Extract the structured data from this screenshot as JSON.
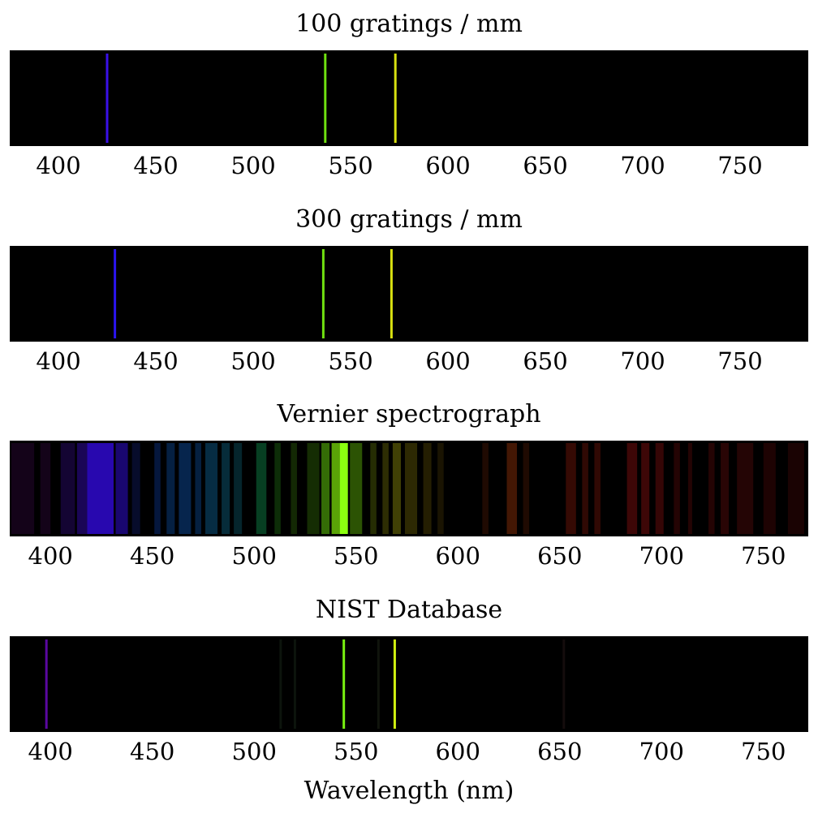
{
  "chart_data": [
    {
      "type": "spectrum",
      "title": "100 gratings / mm",
      "xlim": [
        375,
        785
      ],
      "xticks": [
        400,
        450,
        500,
        550,
        600,
        650,
        700,
        750
      ],
      "lines": [
        {
          "wavelength": 425,
          "color": "#3a10e8",
          "intensity": 1.0
        },
        {
          "wavelength": 537,
          "color": "#6fe010",
          "intensity": 1.0
        },
        {
          "wavelength": 573,
          "color": "#d8e010",
          "intensity": 1.0
        }
      ]
    },
    {
      "type": "spectrum",
      "title": "300 gratings / mm",
      "xlim": [
        375,
        785
      ],
      "xticks": [
        400,
        450,
        500,
        550,
        600,
        650,
        700,
        750
      ],
      "lines": [
        {
          "wavelength": 429,
          "color": "#2a14f0",
          "intensity": 1.0
        },
        {
          "wavelength": 536,
          "color": "#6fe010",
          "intensity": 1.0
        },
        {
          "wavelength": 571,
          "color": "#d8e010",
          "intensity": 1.0
        }
      ]
    },
    {
      "type": "spectrum",
      "title": "Vernier spectrograph",
      "xlim": [
        380,
        772
      ],
      "xticks": [
        400,
        450,
        500,
        550,
        600,
        650,
        700,
        750
      ],
      "bands": [
        {
          "from": 380,
          "to": 392,
          "color": "#3a0a48",
          "intensity": 0.35
        },
        {
          "from": 395,
          "to": 400,
          "color": "#3a0a48",
          "intensity": 0.35
        },
        {
          "from": 405,
          "to": 412,
          "color": "#2c0a70",
          "intensity": 0.45
        },
        {
          "from": 413,
          "to": 418,
          "color": "#2c0a90",
          "intensity": 0.6
        },
        {
          "from": 418,
          "to": 431,
          "color": "#2a08b8",
          "intensity": 0.95
        },
        {
          "from": 432,
          "to": 438,
          "color": "#240aa0",
          "intensity": 0.7
        },
        {
          "from": 440,
          "to": 444,
          "color": "#101a60",
          "intensity": 0.45
        },
        {
          "from": 451,
          "to": 454,
          "color": "#0a2a70",
          "intensity": 0.55
        },
        {
          "from": 457,
          "to": 461,
          "color": "#0a3a78",
          "intensity": 0.55
        },
        {
          "from": 463,
          "to": 469,
          "color": "#0a3e80",
          "intensity": 0.6
        },
        {
          "from": 471,
          "to": 474,
          "color": "#0a4080",
          "intensity": 0.5
        },
        {
          "from": 476,
          "to": 482,
          "color": "#0a4a70",
          "intensity": 0.6
        },
        {
          "from": 484,
          "to": 488,
          "color": "#0a4a60",
          "intensity": 0.6
        },
        {
          "from": 490,
          "to": 494,
          "color": "#0a4a58",
          "intensity": 0.5
        },
        {
          "from": 501,
          "to": 506,
          "color": "#0a5a30",
          "intensity": 0.7
        },
        {
          "from": 510,
          "to": 513,
          "color": "#1a5a10",
          "intensity": 0.5
        },
        {
          "from": 518,
          "to": 521,
          "color": "#2a5a08",
          "intensity": 0.45
        },
        {
          "from": 526,
          "to": 532,
          "color": "#2a5a06",
          "intensity": 0.5
        },
        {
          "from": 533,
          "to": 537,
          "color": "#4a9a08",
          "intensity": 0.7
        },
        {
          "from": 538,
          "to": 542,
          "color": "#6ac008",
          "intensity": 0.85
        },
        {
          "from": 542,
          "to": 546,
          "color": "#8cff10",
          "intensity": 1.0
        },
        {
          "from": 547,
          "to": 553,
          "color": "#4a8a06",
          "intensity": 0.6
        },
        {
          "from": 557,
          "to": 560,
          "color": "#4a5a06",
          "intensity": 0.5
        },
        {
          "from": 563,
          "to": 566,
          "color": "#5a5a06",
          "intensity": 0.5
        },
        {
          "from": 568,
          "to": 572,
          "color": "#6a6a08",
          "intensity": 0.6
        },
        {
          "from": 574,
          "to": 580,
          "color": "#5a5206",
          "intensity": 0.5
        },
        {
          "from": 583,
          "to": 587,
          "color": "#5a4a06",
          "intensity": 0.4
        },
        {
          "from": 590,
          "to": 593,
          "color": "#4a3a06",
          "intensity": 0.35
        },
        {
          "from": 612,
          "to": 615,
          "color": "#5a1e06",
          "intensity": 0.35
        },
        {
          "from": 624,
          "to": 629,
          "color": "#7a2a08",
          "intensity": 0.55
        },
        {
          "from": 632,
          "to": 635,
          "color": "#5a1e06",
          "intensity": 0.35
        },
        {
          "from": 653,
          "to": 658,
          "color": "#6a1408",
          "intensity": 0.5
        },
        {
          "from": 661,
          "to": 664,
          "color": "#6a1408",
          "intensity": 0.45
        },
        {
          "from": 667,
          "to": 670,
          "color": "#6a1408",
          "intensity": 0.45
        },
        {
          "from": 683,
          "to": 688,
          "color": "#700c0c",
          "intensity": 0.55
        },
        {
          "from": 690,
          "to": 694,
          "color": "#700c0c",
          "intensity": 0.55
        },
        {
          "from": 697,
          "to": 701,
          "color": "#6a0c0c",
          "intensity": 0.5
        },
        {
          "from": 706,
          "to": 709,
          "color": "#5a0a0a",
          "intensity": 0.4
        },
        {
          "from": 713,
          "to": 715,
          "color": "#5a0a0a",
          "intensity": 0.4
        },
        {
          "from": 723,
          "to": 726,
          "color": "#5a0a0a",
          "intensity": 0.4
        },
        {
          "from": 729,
          "to": 733,
          "color": "#5a0a0a",
          "intensity": 0.45
        },
        {
          "from": 737,
          "to": 745,
          "color": "#500a0a",
          "intensity": 0.45
        },
        {
          "from": 750,
          "to": 756,
          "color": "#4a0808",
          "intensity": 0.4
        },
        {
          "from": 762,
          "to": 770,
          "color": "#400808",
          "intensity": 0.4
        }
      ]
    },
    {
      "type": "spectrum",
      "title": "NIST Database",
      "xlabel": "Wavelength (nm)",
      "xlim": [
        380,
        772
      ],
      "xticks": [
        400,
        450,
        500,
        550,
        600,
        650,
        700,
        750
      ],
      "lines": [
        {
          "wavelength": 398,
          "color": "#5a08a0",
          "intensity": 1.0
        },
        {
          "wavelength": 513,
          "color": "#0c140c",
          "intensity": 1.0
        },
        {
          "wavelength": 520,
          "color": "#0c140c",
          "intensity": 1.0
        },
        {
          "wavelength": 544,
          "color": "#78f010",
          "intensity": 1.0
        },
        {
          "wavelength": 561,
          "color": "#10140c",
          "intensity": 1.0
        },
        {
          "wavelength": 569,
          "color": "#d0f010",
          "intensity": 1.0
        },
        {
          "wavelength": 652,
          "color": "#140c0c",
          "intensity": 1.0
        }
      ]
    }
  ]
}
